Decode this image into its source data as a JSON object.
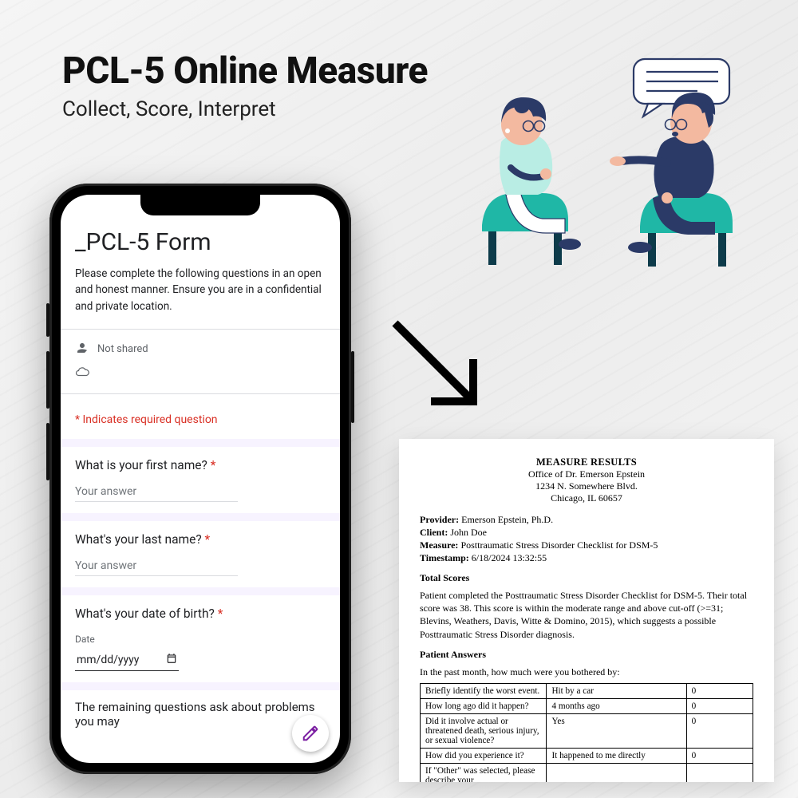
{
  "header": {
    "title": "PCL-5 Online Measure",
    "subtitle": "Collect, Score, Interpret"
  },
  "phone": {
    "form_title": "_PCL-5 Form",
    "form_desc": "Please complete the following questions in an open and honest manner. Ensure you are in a confidential and private location.",
    "not_shared": "Not shared",
    "required_note": "* Indicates required question",
    "q1_label": "What is your first name?",
    "q2_label": "What's your last name?",
    "q3_label": "What's your date of birth?",
    "date_label": "Date",
    "date_placeholder": "mm/dd/yyyy",
    "answer_placeholder": "Your answer",
    "bottom_text": "The remaining questions ask about problems you may"
  },
  "doc": {
    "hdr_title": "MEASURE RESULTS",
    "office": "Office of Dr. Emerson Epstein",
    "addr1": "1234 N. Somewhere Blvd.",
    "addr2": "Chicago, IL 60657",
    "provider_label": "Provider:",
    "provider": "Emerson Epstein, Ph.D.",
    "client_label": "Client:",
    "client": "John Doe",
    "measure_label": "Measure:",
    "measure": "Posttraumatic Stress Disorder Checklist for DSM-5",
    "ts_label": "Timestamp:",
    "ts": "6/18/2024 13:32:55",
    "scores_heading": "Total Scores",
    "scores_para": "Patient completed the Posttraumatic Stress Disorder Checklist for DSM-5. Their total score was 38. This score is within the moderate range and above cut-off (>=31; Blevins, Weathers, Davis, Witte & Domino, 2015), which suggests a possible Posttraumatic Stress Disorder diagnosis.",
    "answers_heading": "Patient Answers",
    "answers_intro": "In the past month, how much were you bothered by:",
    "rows": [
      {
        "q": "Briefly identify the worst event.",
        "a": "Hit by a car",
        "v": "0"
      },
      {
        "q": "How long ago did it happen?",
        "a": "4 months ago",
        "v": "0"
      },
      {
        "q": "Did it involve actual or threatened death, serious injury, or sexual violence?",
        "a": "Yes",
        "v": "0"
      },
      {
        "q": "How did you experience it?",
        "a": "It happened to me directly",
        "v": "0"
      },
      {
        "q": "If \"Other\" was selected, please describe your",
        "a": "",
        "v": ""
      }
    ]
  },
  "colors": {
    "accent_teal": "#1fb7a6",
    "navy": "#2b3a67",
    "skin": "#f3b9a0",
    "required": "#d93025"
  }
}
